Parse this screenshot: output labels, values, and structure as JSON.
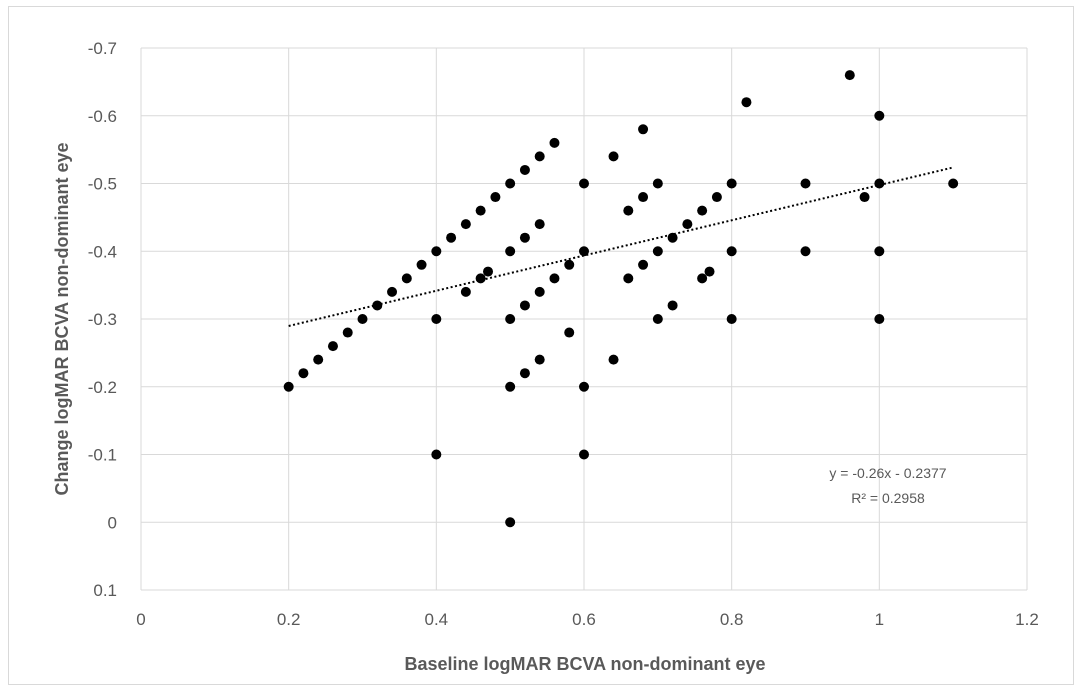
{
  "chart_data": {
    "type": "scatter",
    "xlabel": "Baseline logMAR BCVA non-dominant  eye",
    "ylabel": "Change logMAR BCVA non-dominant  eye",
    "xlim": [
      0,
      1.2
    ],
    "ylim": [
      0.1,
      -0.7
    ],
    "y_axis_reversed": true,
    "x_ticks": [
      "0",
      "0.2",
      "0.4",
      "0.6",
      "0.8",
      "1",
      "1.2"
    ],
    "y_ticks": [
      "-0.7",
      "-0.6",
      "-0.5",
      "-0.4",
      "-0.3",
      "-0.2",
      "-0.1",
      "0",
      "0.1"
    ],
    "grid": true,
    "legend": "none",
    "point_color": "#000000",
    "trendline": {
      "style": "dotted",
      "x_range": [
        0.2,
        1.1
      ],
      "equation": "y = -0.26x - 0.2377",
      "r_squared": "R² = 0.2958"
    },
    "points": [
      [
        0.2,
        -0.2
      ],
      [
        0.22,
        -0.22
      ],
      [
        0.24,
        -0.24
      ],
      [
        0.26,
        -0.26
      ],
      [
        0.28,
        -0.28
      ],
      [
        0.3,
        -0.3
      ],
      [
        0.32,
        -0.32
      ],
      [
        0.34,
        -0.34
      ],
      [
        0.36,
        -0.36
      ],
      [
        0.38,
        -0.38
      ],
      [
        0.4,
        -0.4
      ],
      [
        0.42,
        -0.42
      ],
      [
        0.44,
        -0.44
      ],
      [
        0.46,
        -0.46
      ],
      [
        0.48,
        -0.48
      ],
      [
        0.5,
        -0.5
      ],
      [
        0.52,
        -0.52
      ],
      [
        0.54,
        -0.54
      ],
      [
        0.56,
        -0.56
      ],
      [
        0.4,
        -0.3
      ],
      [
        0.4,
        -0.1
      ],
      [
        0.44,
        -0.34
      ],
      [
        0.46,
        -0.36
      ],
      [
        0.47,
        -0.37
      ],
      [
        0.5,
        -0.4
      ],
      [
        0.5,
        -0.3
      ],
      [
        0.5,
        -0.2
      ],
      [
        0.5,
        0.0
      ],
      [
        0.52,
        -0.42
      ],
      [
        0.52,
        -0.32
      ],
      [
        0.52,
        -0.22
      ],
      [
        0.54,
        -0.44
      ],
      [
        0.54,
        -0.34
      ],
      [
        0.54,
        -0.24
      ],
      [
        0.56,
        -0.36
      ],
      [
        0.58,
        -0.38
      ],
      [
        0.58,
        -0.28
      ],
      [
        0.6,
        -0.5
      ],
      [
        0.6,
        -0.4
      ],
      [
        0.6,
        -0.2
      ],
      [
        0.6,
        -0.1
      ],
      [
        0.64,
        -0.54
      ],
      [
        0.64,
        -0.24
      ],
      [
        0.66,
        -0.46
      ],
      [
        0.66,
        -0.36
      ],
      [
        0.68,
        -0.58
      ],
      [
        0.68,
        -0.48
      ],
      [
        0.68,
        -0.38
      ],
      [
        0.7,
        -0.5
      ],
      [
        0.7,
        -0.4
      ],
      [
        0.7,
        -0.3
      ],
      [
        0.72,
        -0.42
      ],
      [
        0.72,
        -0.32
      ],
      [
        0.74,
        -0.44
      ],
      [
        0.76,
        -0.46
      ],
      [
        0.76,
        -0.36
      ],
      [
        0.77,
        -0.37
      ],
      [
        0.78,
        -0.48
      ],
      [
        0.8,
        -0.5
      ],
      [
        0.8,
        -0.4
      ],
      [
        0.8,
        -0.3
      ],
      [
        0.82,
        -0.62
      ],
      [
        0.9,
        -0.5
      ],
      [
        0.9,
        -0.4
      ],
      [
        0.96,
        -0.66
      ],
      [
        0.98,
        -0.48
      ],
      [
        1.0,
        -0.6
      ],
      [
        1.0,
        -0.5
      ],
      [
        1.0,
        -0.4
      ],
      [
        1.0,
        -0.3
      ],
      [
        1.1,
        -0.5
      ]
    ]
  }
}
